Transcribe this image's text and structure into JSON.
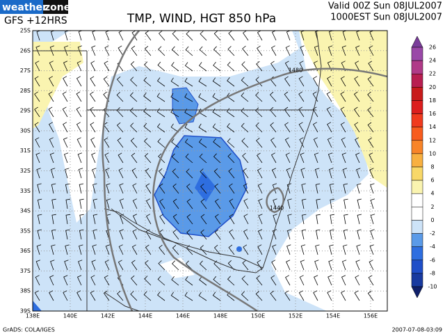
{
  "header": {
    "logo": [
      "weather",
      "zone"
    ],
    "model": "GFS +12HRS",
    "title": "TMP, WIND, HGT 850 hPa",
    "valid": [
      "Valid 00Z Sun 08JUL2007",
      "1000EST Sun 08JUL2007"
    ]
  },
  "map": {
    "lat_labels": [
      "25S",
      "26S",
      "27S",
      "28S",
      "29S",
      "30S",
      "31S",
      "32S",
      "33S",
      "34S",
      "35S",
      "36S",
      "37S",
      "38S",
      "39S"
    ],
    "lon_labels": [
      "138E",
      "140E",
      "142E",
      "144E",
      "146E",
      "148E",
      "150E",
      "152E",
      "154E",
      "156E"
    ],
    "contour_labels": [
      "1480",
      "1440"
    ]
  },
  "colorbar": {
    "labels": [
      26,
      24,
      22,
      20,
      18,
      16,
      14,
      12,
      10,
      8,
      6,
      4,
      2,
      0,
      -2,
      -4,
      -6,
      -8,
      -10
    ],
    "colors": [
      "#7a3d9a",
      "#9a48a8",
      "#b03a88",
      "#b81e50",
      "#c81a1a",
      "#dc1e1e",
      "#f03a1e",
      "#f85c1e",
      "#f88428",
      "#f8b040",
      "#f8d868",
      "#faf4b0",
      "#ffffff",
      "#ffffff",
      "#cde3f8",
      "#5a9ae8",
      "#2e6ee0",
      "#1f4ec8",
      "#183aa0",
      "#10206a"
    ]
  },
  "footer": {
    "credit": "GrADS: COLA/IGES",
    "timestamp": "2007-07-08-03:09"
  }
}
